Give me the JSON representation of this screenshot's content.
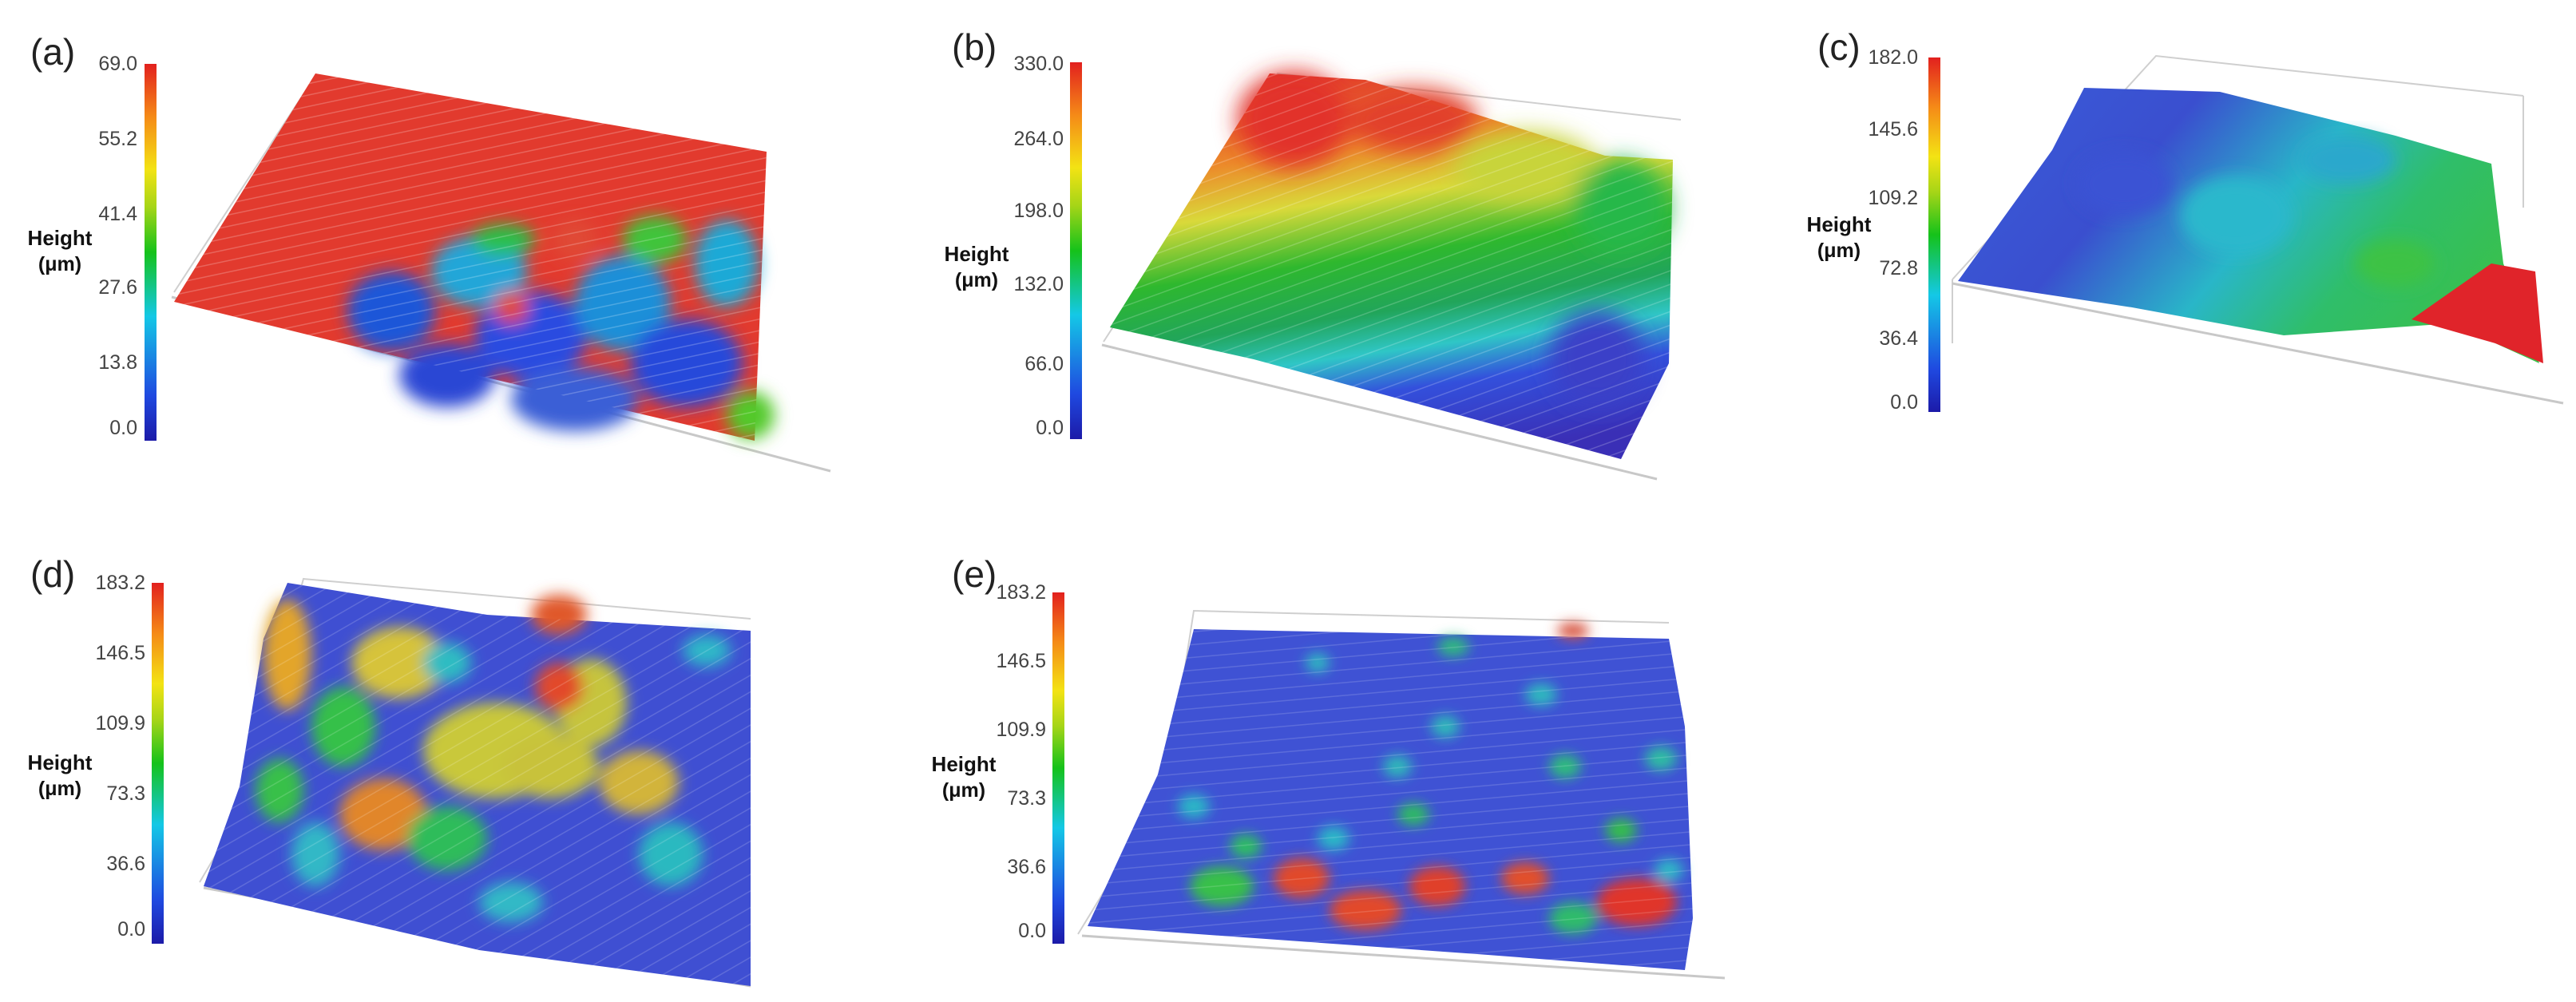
{
  "panels": [
    {
      "id": "a",
      "label": "(a)",
      "axis_title": "Height",
      "unit": "(μm)",
      "ticks": [
        "69.0",
        "55.2",
        "41.4",
        "27.6",
        "13.8",
        "0.0"
      ],
      "dominant_colors": [
        "#e2201e",
        "#1f49e0",
        "#15c21a"
      ]
    },
    {
      "id": "b",
      "label": "(b)",
      "axis_title": "Height",
      "unit": "(μm)",
      "ticks": [
        "330.0",
        "264.0",
        "198.0",
        "132.0",
        "66.0",
        "0.0"
      ],
      "dominant_colors": [
        "#e2201e",
        "#15c21a",
        "#1f49e0"
      ]
    },
    {
      "id": "c",
      "label": "(c)",
      "axis_title": "Height",
      "unit": "(μm)",
      "ticks": [
        "182.0",
        "145.6",
        "109.2",
        "72.8",
        "36.4",
        "0.0"
      ],
      "dominant_colors": [
        "#1f49e0",
        "#14c8e6",
        "#e2201e"
      ]
    },
    {
      "id": "d",
      "label": "(d)",
      "axis_title": "Height",
      "unit": "(μm)",
      "ticks": [
        "183.2",
        "146.5",
        "109.9",
        "73.3",
        "36.6",
        "0.0"
      ],
      "dominant_colors": [
        "#1f49e0",
        "#15c21a",
        "#f3e314"
      ]
    },
    {
      "id": "e",
      "label": "(e)",
      "axis_title": "Height",
      "unit": "(μm)",
      "ticks": [
        "183.2",
        "146.5",
        "109.9",
        "73.3",
        "36.6",
        "0.0"
      ],
      "dominant_colors": [
        "#1f49e0",
        "#e2201e",
        "#15c21a"
      ]
    }
  ]
}
